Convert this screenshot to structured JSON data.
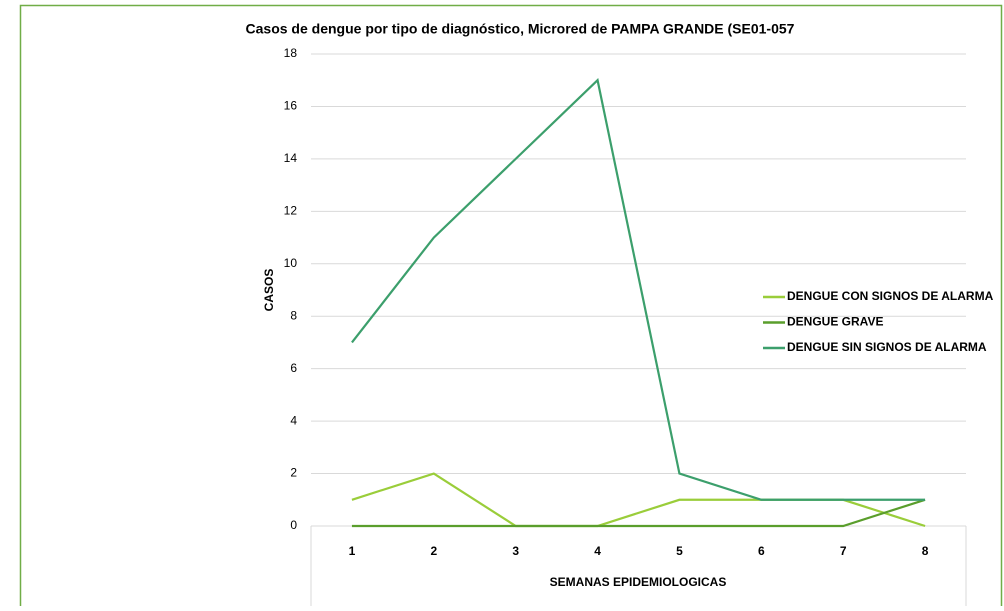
{
  "chart_data": {
    "type": "line",
    "title": "Casos de dengue por tipo de diagnóstico, Microred de PAMPA GRANDE  (SE01-057",
    "x_label": "SEMANAS EPIDEMIOLOGICAS",
    "y_label": "CASOS",
    "categories": [
      "1",
      "2",
      "3",
      "4",
      "5",
      "6",
      "7",
      "8"
    ],
    "series": [
      {
        "name": "DENGUE CON SIGNOS DE ALARMA",
        "color": "#9acd3a",
        "values": [
          1,
          2,
          0,
          0,
          1,
          1,
          1,
          0
        ]
      },
      {
        "name": "DENGUE GRAVE",
        "color": "#5a9e2c",
        "values": [
          0,
          0,
          0,
          0,
          0,
          0,
          0,
          1
        ]
      },
      {
        "name": "DENGUE SIN SIGNOS DE ALARMA",
        "color": "#3c9f6c",
        "values": [
          7,
          11,
          14,
          17,
          2,
          1,
          1,
          1
        ]
      }
    ],
    "ylim": [
      0,
      18
    ],
    "yticks": [
      0,
      2,
      4,
      6,
      8,
      10,
      12,
      14,
      16,
      18
    ],
    "grid": true,
    "legend": "right"
  }
}
